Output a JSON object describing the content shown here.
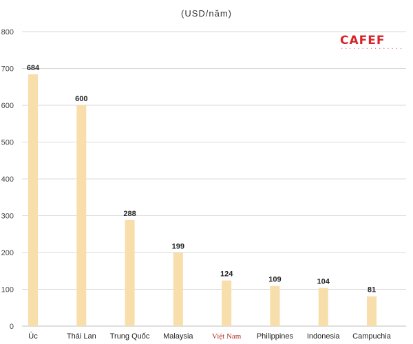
{
  "chart_data": {
    "type": "bar",
    "title": "(USD/năm)",
    "xlabel": "",
    "ylabel": "",
    "ylim": [
      0,
      800
    ],
    "yticks": [
      0,
      100,
      200,
      300,
      400,
      500,
      600,
      700,
      800
    ],
    "grid": true,
    "categories": [
      "Úc",
      "Thái Lan",
      "Trung Quốc",
      "Malaysia",
      "Việt Nam",
      "Philippines",
      "Indonesia",
      "Campuchia"
    ],
    "values": [
      684,
      600,
      288,
      199,
      124,
      109,
      104,
      81
    ],
    "highlighted_category": "Việt Nam",
    "colors": {
      "bar": "#f8deaa",
      "highlight_label": "#b0302a",
      "grid": "#d9d9d9",
      "logo": "#d8232a"
    }
  },
  "logo": {
    "name": "CAFEF",
    "icon": "cafef-logo"
  }
}
